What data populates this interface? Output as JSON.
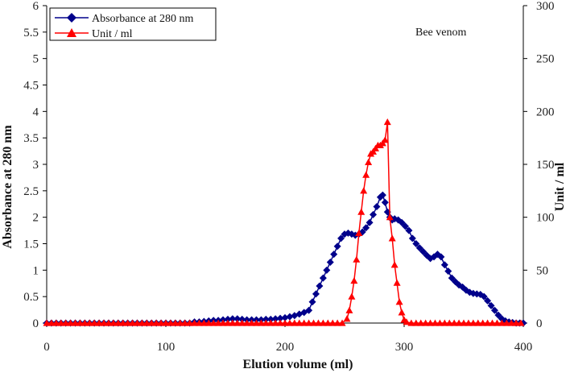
{
  "chart_data": {
    "type": "line",
    "title": "",
    "annotation": "Bee venom",
    "xlabel": "Elution volume (ml)",
    "ylabel": "Absorbance at 280 nm",
    "y2label": "Unit / ml",
    "xlim": [
      0,
      400
    ],
    "ylim": [
      0,
      6
    ],
    "y2lim": [
      0,
      300
    ],
    "xticks": [
      "0",
      "100",
      "200",
      "300",
      "400"
    ],
    "yticks": [
      "0",
      "0.5",
      "1",
      "1.5",
      "2",
      "2.5",
      "3",
      "3.5",
      "4",
      "4.5",
      "5",
      "5.5",
      "6"
    ],
    "y2ticks": [
      "0",
      "50",
      "100",
      "150",
      "200",
      "250",
      "300"
    ],
    "grid": false,
    "legend": "top-left",
    "series": [
      {
        "name": "Absorbance at 280 nm",
        "axis": "left",
        "color": "#00008B",
        "marker": "diamond",
        "x": [
          0,
          4,
          8,
          12,
          16,
          20,
          24,
          28,
          32,
          36,
          40,
          44,
          48,
          52,
          56,
          60,
          64,
          68,
          72,
          76,
          80,
          84,
          88,
          92,
          96,
          100,
          104,
          108,
          112,
          116,
          120,
          124,
          128,
          132,
          136,
          140,
          144,
          148,
          152,
          156,
          160,
          164,
          168,
          172,
          176,
          180,
          184,
          188,
          192,
          196,
          200,
          204,
          208,
          212,
          216,
          220,
          223,
          226,
          229,
          232,
          235,
          238,
          241,
          244,
          247,
          250,
          253,
          256,
          259,
          262,
          265,
          268,
          271,
          274,
          277,
          280,
          282,
          284,
          286,
          288,
          290,
          292,
          295,
          298,
          301,
          304,
          307,
          310,
          313,
          316,
          319,
          322,
          325,
          328,
          331,
          334,
          337,
          340,
          343,
          346,
          349,
          352,
          355,
          358,
          361,
          364,
          367,
          370,
          373,
          376,
          379,
          382,
          385,
          388,
          391,
          394,
          397,
          400
        ],
        "values": [
          0,
          0,
          0,
          0,
          0,
          0,
          0,
          0,
          0,
          0,
          0,
          0,
          0,
          0,
          0,
          0,
          0,
          0,
          0,
          0,
          0,
          0,
          0,
          0,
          0,
          0,
          0,
          0,
          0,
          0,
          0,
          0.02,
          0.02,
          0.03,
          0.04,
          0.05,
          0.05,
          0.06,
          0.07,
          0.08,
          0.08,
          0.07,
          0.06,
          0.06,
          0.06,
          0.06,
          0.07,
          0.07,
          0.08,
          0.09,
          0.1,
          0.12,
          0.14,
          0.17,
          0.2,
          0.24,
          0.4,
          0.55,
          0.7,
          0.85,
          1.0,
          1.15,
          1.3,
          1.45,
          1.6,
          1.68,
          1.7,
          1.68,
          1.66,
          1.68,
          1.72,
          1.8,
          1.9,
          2.05,
          2.2,
          2.38,
          2.42,
          2.28,
          2.1,
          2.0,
          1.95,
          1.97,
          1.95,
          1.9,
          1.83,
          1.75,
          1.6,
          1.5,
          1.42,
          1.35,
          1.28,
          1.22,
          1.25,
          1.3,
          1.25,
          1.1,
          0.98,
          0.85,
          0.78,
          0.72,
          0.68,
          0.62,
          0.58,
          0.56,
          0.55,
          0.54,
          0.5,
          0.42,
          0.33,
          0.24,
          0.15,
          0.08,
          0.04,
          0.02,
          0.01,
          0,
          0,
          0
        ]
      },
      {
        "name": "Unit / ml",
        "axis": "right",
        "color": "#FF0000",
        "marker": "triangle",
        "x": [
          0,
          4,
          8,
          12,
          16,
          20,
          24,
          28,
          32,
          36,
          40,
          44,
          48,
          52,
          56,
          60,
          64,
          68,
          72,
          76,
          80,
          84,
          88,
          92,
          96,
          100,
          104,
          108,
          112,
          116,
          120,
          124,
          128,
          132,
          136,
          140,
          144,
          148,
          152,
          156,
          160,
          164,
          168,
          172,
          176,
          180,
          184,
          188,
          192,
          196,
          200,
          204,
          208,
          212,
          216,
          220,
          224,
          228,
          232,
          236,
          240,
          244,
          248,
          252,
          254,
          256,
          258,
          260,
          262,
          264,
          266,
          268,
          270,
          272,
          274,
          276,
          278,
          280,
          282,
          284,
          286,
          288,
          290,
          292,
          294,
          296,
          298,
          300,
          302,
          306,
          310,
          314,
          318,
          322,
          326,
          330,
          334,
          338,
          342,
          346,
          350,
          354,
          358,
          362,
          366,
          370,
          374,
          378,
          382,
          386,
          390,
          394,
          398
        ],
        "values": [
          0,
          0,
          0,
          0,
          0,
          0,
          0,
          0,
          0,
          0,
          0,
          0,
          0,
          0,
          0,
          0,
          0,
          0,
          0,
          0,
          0,
          0,
          0,
          0,
          0,
          0,
          0,
          0,
          0,
          0,
          0,
          0,
          0,
          0,
          0,
          0,
          0,
          0,
          0,
          0,
          0,
          0,
          0,
          0,
          0,
          0,
          0,
          0,
          0,
          0,
          0,
          0,
          0,
          0,
          0,
          0,
          0,
          0,
          0,
          0,
          0,
          0,
          0,
          4,
          12,
          25,
          40,
          60,
          85,
          105,
          125,
          140,
          152,
          160,
          162,
          165,
          168,
          168,
          170,
          173,
          190,
          100,
          80,
          55,
          38,
          20,
          10,
          3,
          1,
          0,
          0,
          0,
          0,
          0,
          0,
          0,
          0,
          0,
          0,
          0,
          0,
          0,
          0,
          0,
          0,
          0,
          0,
          0,
          0,
          0,
          0,
          0,
          0
        ]
      }
    ]
  }
}
